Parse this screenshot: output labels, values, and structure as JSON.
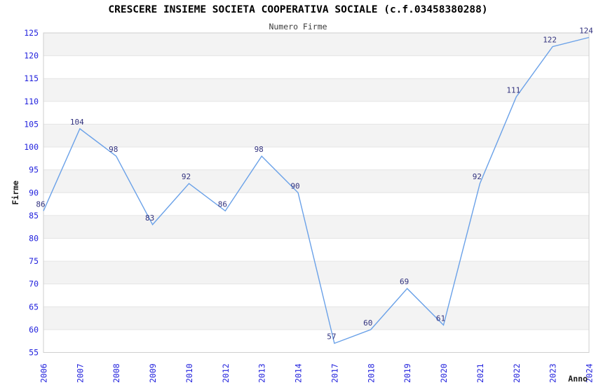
{
  "chart_data": {
    "type": "line",
    "title": "CRESCERE INSIEME SOCIETA COOPERATIVA SOCIALE (c.f.03458380288)",
    "subtitle": "Numero Firme",
    "xlabel": "Anno",
    "ylabel": "Firme",
    "categories": [
      "2006",
      "2007",
      "2008",
      "2009",
      "2010",
      "2012",
      "2013",
      "2014",
      "2017",
      "2018",
      "2019",
      "2020",
      "2021",
      "2022",
      "2023",
      "2024"
    ],
    "values": [
      86,
      104,
      98,
      83,
      92,
      86,
      98,
      90,
      57,
      60,
      69,
      61,
      92,
      111,
      122,
      124
    ],
    "ylim": [
      55,
      125
    ],
    "ytick_step": 5,
    "grid": "horizontal-bands-alternating",
    "legend": "none",
    "markers": "none",
    "x_tick_rotation": 90,
    "colors": {
      "line": "#6aa1e8",
      "data_label": "#32327e",
      "tick_label": "#2222dd",
      "band_gray": "#f3f3f3",
      "band_white": "#ffffff",
      "gridline": "#e4e4e4",
      "plot_border": "#cfcfcf",
      "title": "#000000",
      "subtitle": "#3c3c3c",
      "axis_label": "#1a1a1a",
      "background": "#ffffff"
    }
  }
}
